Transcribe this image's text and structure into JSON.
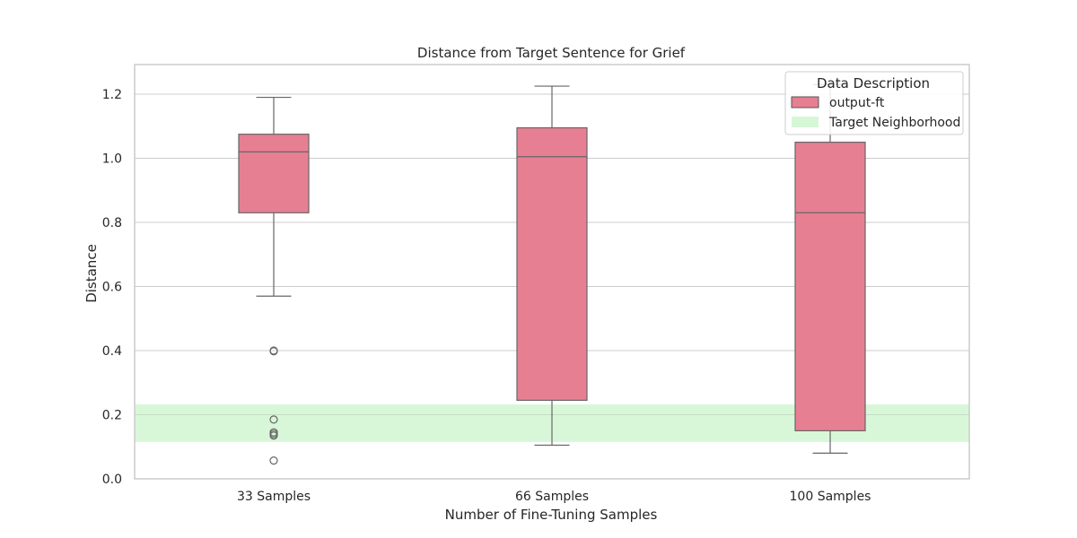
{
  "chart_data": {
    "type": "box",
    "title": "Distance from Target Sentence for Grief",
    "xlabel": "Number of Fine-Tuning Samples",
    "ylabel": "Distance",
    "ylim": [
      0.0,
      1.3
    ],
    "yticks": [
      "0.0",
      "0.2",
      "0.4",
      "0.6",
      "0.8",
      "1.0",
      "1.2"
    ],
    "categories": [
      "33 Samples",
      "66 Samples",
      "100 Samples"
    ],
    "series": [
      {
        "name": "output-ft",
        "color": "#e77f93",
        "boxes": [
          {
            "whisker_low": 0.57,
            "q1": 0.83,
            "median": 1.02,
            "q3": 1.075,
            "whisker_high": 1.19,
            "outliers": [
              0.4,
              0.398,
              0.185,
              0.145,
              0.14,
              0.135,
              0.057
            ]
          },
          {
            "whisker_low": 0.105,
            "q1": 0.245,
            "median": 1.005,
            "q3": 1.095,
            "whisker_high": 1.225,
            "outliers": []
          },
          {
            "whisker_low": 0.08,
            "q1": 0.15,
            "median": 0.83,
            "q3": 1.05,
            "whisker_high": 1.23,
            "outliers": []
          }
        ]
      }
    ],
    "target_neighborhood": {
      "name": "Target Neighborhood",
      "low": 0.115,
      "high": 0.232,
      "center": 0.2,
      "color": "#d6f7d6"
    },
    "legend": {
      "title": "Data Description",
      "placement": "top-right"
    },
    "grid": true
  }
}
